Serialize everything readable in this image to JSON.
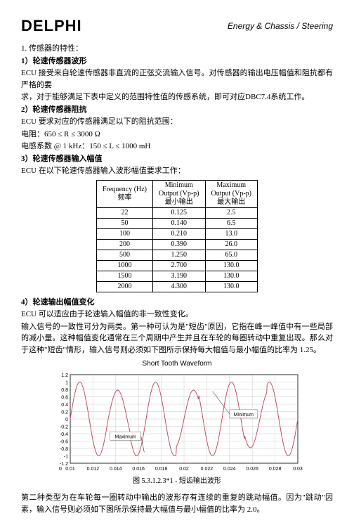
{
  "header": {
    "logo": "DELPHI",
    "right": "Energy & Chassis / Steering"
  },
  "sec1": {
    "num": "1.",
    "title": "传感器的特性：",
    "h1": "1）轮速传感器波形",
    "p1a": "ECU 接受来自轮速传感器非直流的正弦交流输入信号。对传感器的输出电压幅值和阻抗都有严格的要",
    "p1b": "求，对于能够满足下表中定义的范围特性值的传感系统，即可对应DBC7.4系统工作。",
    "h2": "2）轮速传感器阻抗",
    "p2a": "ECU 要求对应的传感器满足以下的阻抗范围：",
    "p2b": "电阻：650 ≤ R ≤ 3000 Ω",
    "p2c": "电感系数 @ 1 kHz：150 ≤ L ≤ 1000 mH",
    "h3": "3）轮速传感器输入幅值",
    "p3a": "ECU 在以下轮速传感器输入波形幅值要求工作："
  },
  "table": {
    "head": {
      "c1a": "Frequency (Hz)",
      "c1b": "频率",
      "c2a": "Minimum",
      "c2b": "Output (Vp-p)",
      "c2c": "最小输出",
      "c3a": "Maximum",
      "c3b": "Output (Vp-p)",
      "c3c": "最大输出"
    },
    "rows": [
      {
        "f": "22",
        "min": "0.125",
        "max": "2.5"
      },
      {
        "f": "50",
        "min": "0.140",
        "max": "6.5"
      },
      {
        "f": "100",
        "min": "0.210",
        "max": "13.0"
      },
      {
        "f": "200",
        "min": "0.390",
        "max": "26.0"
      },
      {
        "f": "500",
        "min": "1.250",
        "max": "65.0"
      },
      {
        "f": "1000",
        "min": "2.700",
        "max": "130.0"
      },
      {
        "f": "1500",
        "min": "3.190",
        "max": "130.0"
      },
      {
        "f": "2000",
        "min": "4.300",
        "max": "130.0"
      }
    ]
  },
  "sec4": {
    "h4": "4）轮速输出幅值变化",
    "p4a": "ECU 可以适应由于轮速输入幅值的非一致性变化。",
    "p4b": "输入信号的一致性可分为两类。第一种可认为是\"短齿\"原因，它指在峰一峰值中有一些局部的减小量。这种幅值变化通常在三个周期中产生并且在车轮的每圈转动中重复出现。那么对于这种\"短齿\"情形，输入信号则必须如下图所示保持每大幅值与最小幅值的比率为 1.25。"
  },
  "chart": {
    "title": "Short Tooth Waveform",
    "caption": "图 5.3.1.2.3*1 - 短齿输出波形",
    "y_ticks": [
      "1.2",
      "1",
      "0.8",
      "0.6",
      "0.4",
      "0.2",
      "0",
      "-0.2",
      "-0.4",
      "-0.6",
      "-0.8",
      "-1",
      "-1.2"
    ],
    "x_ticks": [
      "0",
      "0.01",
      "0.012",
      "0.014",
      "0.016",
      "0.018",
      "0.02",
      "0.022",
      "0.024",
      "0.026",
      "0.028",
      "0.03"
    ],
    "labels": {
      "max": "Maximum",
      "min": "Minimum"
    },
    "colors": {
      "line": "#c05060",
      "grid": "#cccccc",
      "axis": "#000000",
      "box": "#666666"
    }
  },
  "sec5": {
    "p5": "第二种类型为在车轮每一圈转动中输出的波形存有连续的重复的跳动幅值。因为\"跳动\"因素，输入信号则必须如下图所示保持最大幅值与最小幅值的比率为 2.0。"
  }
}
